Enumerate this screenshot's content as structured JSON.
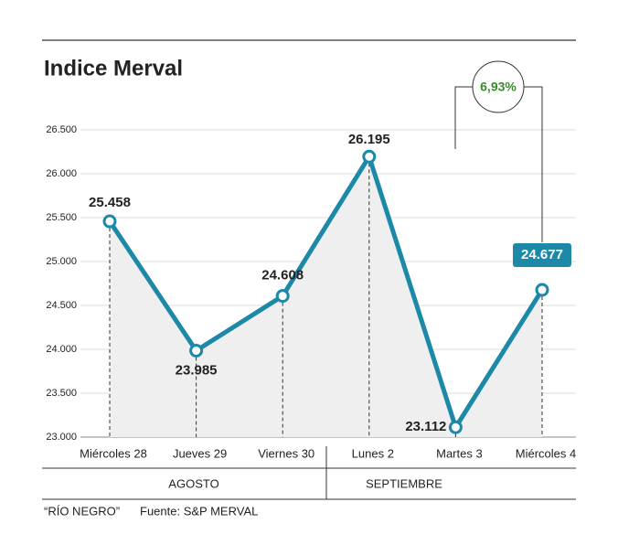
{
  "chart_data": {
    "type": "line",
    "title": "Indice Merval",
    "categories": [
      "Miércoles 28",
      "Jueves 29",
      "Viernes 30",
      "Lunes 2",
      "Martes 3",
      "Miércoles 4"
    ],
    "series": [
      {
        "name": "Indice Merval",
        "color": "#1b89a7",
        "values": [
          25458,
          23985,
          24608,
          26195,
          23112,
          24677
        ],
        "value_labels": [
          "25.458",
          "23.985",
          "24.608",
          "26.195",
          "23.112",
          "24.677"
        ]
      }
    ],
    "ylim": [
      23000,
      26500
    ],
    "yticks": [
      {
        "value": 23000,
        "label": "23.000"
      },
      {
        "value": 23500,
        "label": "23.500"
      },
      {
        "value": 24000,
        "label": "24.000"
      },
      {
        "value": 24500,
        "label": "24.500"
      },
      {
        "value": 25000,
        "label": "25.000"
      },
      {
        "value": 25500,
        "label": "25.500"
      },
      {
        "value": 26000,
        "label": "26.000"
      },
      {
        "value": 26500,
        "label": "26.500"
      }
    ],
    "grid": true,
    "groups": [
      "AGOSTO",
      "SEPTIEMBRE"
    ],
    "annotation": {
      "text": "6,93%",
      "color": "#3a8a2e"
    },
    "footer": {
      "source_name": "“RÍO NEGRO”",
      "source": "Fuente: S&P MERVAL"
    }
  }
}
